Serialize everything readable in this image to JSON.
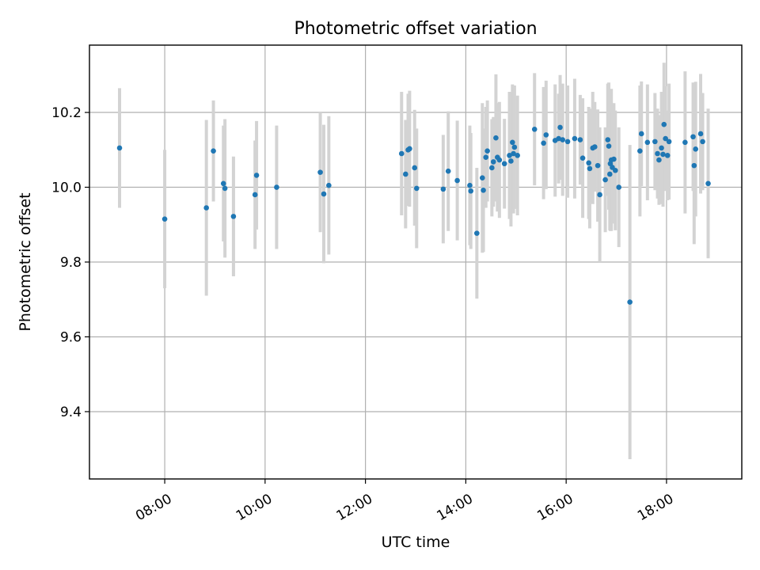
{
  "chart_data": {
    "type": "scatter",
    "title": "Photometric offset variation",
    "xlabel": "UTC time",
    "ylabel": "Photometric offset",
    "x_unit": "hours UTC",
    "xlim": [
      6.5,
      19.5
    ],
    "ylim": [
      9.22,
      10.38
    ],
    "grid": true,
    "x_ticks": [
      {
        "value": 8,
        "label": "08:00"
      },
      {
        "value": 10,
        "label": "10:00"
      },
      {
        "value": 12,
        "label": "12:00"
      },
      {
        "value": 14,
        "label": "14:00"
      },
      {
        "value": 16,
        "label": "16:00"
      },
      {
        "value": 18,
        "label": "18:00"
      }
    ],
    "y_ticks": [
      {
        "value": 9.4,
        "label": "9.4"
      },
      {
        "value": 9.6,
        "label": "9.6"
      },
      {
        "value": 9.8,
        "label": "9.8"
      },
      {
        "value": 10.0,
        "label": "10.0"
      },
      {
        "value": 10.2,
        "label": "10.2"
      }
    ],
    "colors": {
      "point": "#1f77b4",
      "error_bar": "#d3d3d3",
      "grid": "#b0b0b0"
    },
    "series": [
      {
        "x": [
          7.1,
          8.0,
          8.83,
          8.97,
          9.17,
          9.2,
          9.37,
          9.8,
          9.83,
          10.23,
          11.1,
          11.17,
          11.27,
          12.72,
          12.8,
          12.85,
          12.88,
          12.98,
          13.02,
          13.55,
          13.65,
          13.83,
          14.08,
          14.1,
          14.22,
          14.33,
          14.35,
          14.4,
          14.43,
          14.52,
          14.55,
          14.6,
          14.63,
          14.67,
          14.77,
          14.87,
          14.9,
          14.93,
          14.95,
          14.97,
          15.03,
          15.37,
          15.55,
          15.6,
          15.78,
          15.85,
          15.88,
          15.93,
          16.03,
          16.17,
          16.28,
          16.33,
          16.45,
          16.47,
          16.53,
          16.57,
          16.63,
          16.67,
          16.78,
          16.83,
          16.85,
          16.87,
          16.88,
          16.9,
          16.92,
          16.95,
          16.98,
          17.05,
          17.27,
          17.47,
          17.5,
          17.62,
          17.77,
          17.82,
          17.85,
          17.9,
          17.93,
          17.95,
          17.98,
          18.02,
          18.05,
          18.37,
          18.53,
          18.55,
          18.58,
          18.68,
          18.72,
          18.83
        ],
        "y": [
          10.105,
          9.915,
          9.945,
          10.097,
          10.01,
          9.997,
          9.922,
          9.98,
          10.032,
          10.0,
          10.04,
          9.982,
          10.005,
          10.09,
          10.035,
          10.1,
          10.103,
          10.052,
          9.997,
          9.995,
          10.043,
          10.018,
          10.005,
          9.99,
          9.877,
          10.025,
          9.992,
          10.08,
          10.097,
          10.052,
          10.068,
          10.132,
          10.08,
          10.073,
          10.063,
          10.085,
          10.07,
          10.12,
          10.09,
          10.107,
          10.085,
          10.155,
          10.118,
          10.14,
          10.125,
          10.13,
          10.16,
          10.127,
          10.122,
          10.13,
          10.127,
          10.078,
          10.065,
          10.05,
          10.105,
          10.108,
          10.058,
          9.98,
          10.02,
          10.127,
          10.11,
          10.035,
          10.063,
          10.073,
          10.053,
          10.075,
          10.045,
          10.0,
          9.693,
          10.097,
          10.143,
          10.12,
          10.122,
          10.09,
          10.073,
          10.105,
          10.088,
          10.168,
          10.13,
          10.085,
          10.122,
          10.12,
          10.135,
          10.058,
          10.102,
          10.143,
          10.122,
          10.01
        ],
        "err": [
          0.16,
          0.185,
          0.235,
          0.135,
          0.155,
          0.185,
          0.16,
          0.145,
          0.145,
          0.165,
          0.16,
          0.185,
          0.185,
          0.165,
          0.145,
          0.15,
          0.155,
          0.155,
          0.16,
          0.145,
          0.16,
          0.16,
          0.16,
          0.155,
          0.175,
          0.2,
          0.165,
          0.135,
          0.135,
          0.13,
          0.12,
          0.17,
          0.145,
          0.155,
          0.12,
          0.17,
          0.175,
          0.155,
          0.16,
          0.165,
          0.16,
          0.15,
          0.15,
          0.145,
          0.15,
          0.12,
          0.14,
          0.15,
          0.15,
          0.16,
          0.12,
          0.16,
          0.15,
          0.16,
          0.15,
          0.12,
          0.15,
          0.18,
          0.14,
          0.15,
          0.17,
          0.15,
          0.18,
          0.19,
          0.15,
          0.15,
          0.16,
          0.16,
          0.42,
          0.175,
          0.14,
          0.155,
          0.13,
          0.12,
          0.12,
          0.15,
          0.14,
          0.165,
          0.14,
          0.12,
          0.155,
          0.19,
          0.145,
          0.21,
          0.18,
          0.16,
          0.13,
          0.2
        ]
      }
    ]
  }
}
